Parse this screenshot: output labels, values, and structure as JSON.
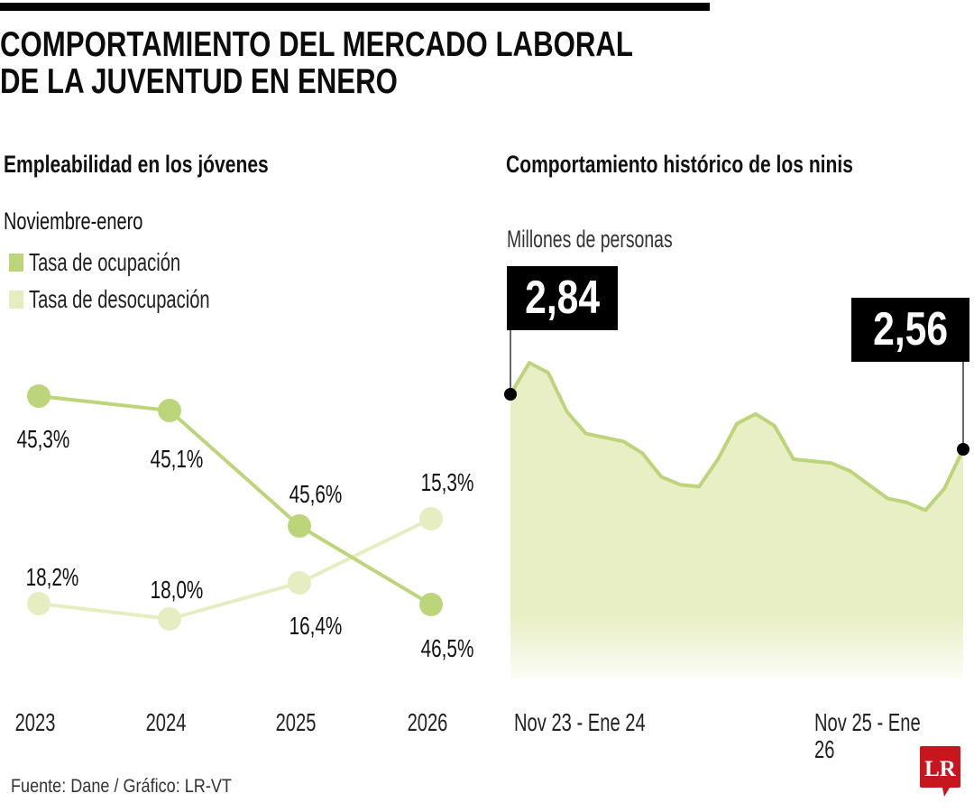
{
  "header": {
    "title_line1": "COMPORTAMIENTO DEL MERCADO LABORAL",
    "title_line2": "DE LA JUVENTUD EN ENERO"
  },
  "left_panel": {
    "title": "Empleabilidad en los jóvenes",
    "subtitle": "Noviembre-enero",
    "legend": [
      {
        "label": "Tasa de ocupación",
        "color": "#bdd57a"
      },
      {
        "label": "Tasa de desocupación",
        "color": "#e6edc0"
      }
    ]
  },
  "right_panel": {
    "title": "Comportamiento histórico de los ninis",
    "units": "Millones de personas",
    "callout_start": "2,84",
    "callout_end": "2,56",
    "x_label_start": "Nov 23 - Ene 24",
    "x_label_end": "Nov 25 - Ene 26"
  },
  "footer": {
    "source": "Fuente: Dane / Gráfico: LR-VT",
    "logo_text": "LR",
    "logo_color": "#c8161e"
  },
  "chart_data": [
    {
      "type": "line",
      "title": "Empleabilidad en los jóvenes",
      "subtitle": "Noviembre-enero",
      "categories": [
        "2023",
        "2024",
        "2025",
        "2026"
      ],
      "series": [
        {
          "name": "Tasa de ocupación",
          "color": "#bdd57a",
          "values": [
            45.3,
            45.1,
            45.6,
            46.5
          ],
          "labels": [
            "45,3%",
            "45,1%",
            "45,6%",
            "46,5%"
          ]
        },
        {
          "name": "Tasa de desocupación",
          "color": "#e6edc0",
          "values": [
            18.2,
            18.0,
            16.4,
            15.3
          ],
          "labels": [
            "18,2%",
            "18,0%",
            "16,4%",
            "15,3%"
          ]
        }
      ],
      "legend": "top-left",
      "grid": false
    },
    {
      "type": "area",
      "title": "Comportamiento histórico de los ninis",
      "ylabel": "Millones de personas",
      "x_start_label": "Nov 23 - Ene 24",
      "x_end_label": "Nov 25 - Ene 26",
      "color_line": "#bcd47a",
      "color_fill": "#e9efc4",
      "values": [
        2.84,
        3.0,
        2.95,
        2.75,
        2.64,
        2.62,
        2.6,
        2.54,
        2.42,
        2.38,
        2.37,
        2.51,
        2.69,
        2.74,
        2.68,
        2.51,
        2.5,
        2.49,
        2.45,
        2.38,
        2.31,
        2.29,
        2.25,
        2.36,
        2.56
      ],
      "annotations": [
        {
          "index": 0,
          "label": "2,84"
        },
        {
          "index": 24,
          "label": "2,56"
        }
      ],
      "grid": false
    }
  ]
}
